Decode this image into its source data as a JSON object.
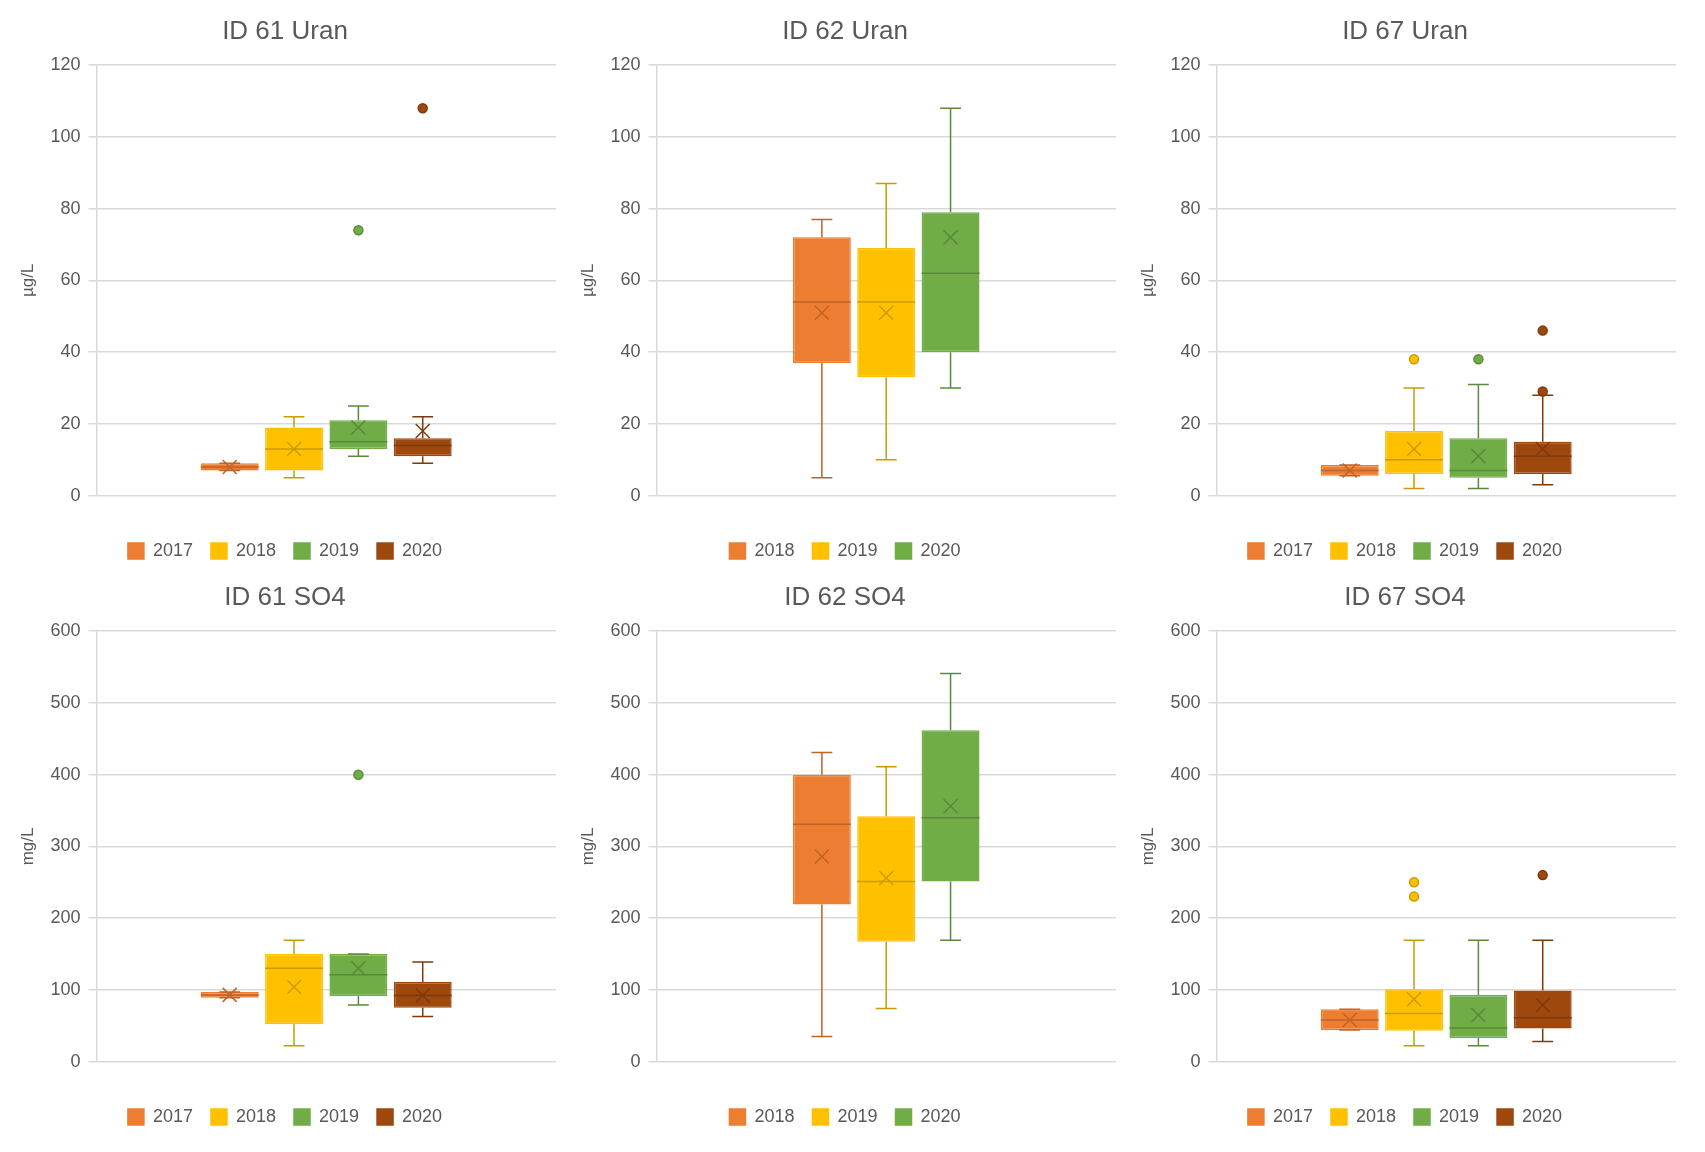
{
  "chart_data": [
    {
      "type": "box",
      "title": "ID 61 Uran",
      "ylabel": "µg/L",
      "categories": [
        null
      ],
      "ylim": [
        0,
        120
      ],
      "yticks": [
        0,
        20,
        40,
        60,
        80,
        100,
        120
      ],
      "grid": "y",
      "legend": "bottom",
      "series": [
        {
          "name": "2017",
          "color": "#ed7d31",
          "boxes": [
            {
              "low": 7,
              "q1": 7,
              "median": 8,
              "q3": 9,
              "high": 9,
              "mean": 8
            }
          ]
        },
        {
          "name": "2018",
          "color": "#ffc000",
          "boxes": [
            {
              "low": 5,
              "q1": 7,
              "median": 13,
              "q3": 19,
              "high": 22,
              "mean": 13
            }
          ]
        },
        {
          "name": "2019",
          "color": "#70ad47",
          "boxes": [
            {
              "low": 11,
              "q1": 13,
              "median": 15,
              "q3": 21,
              "high": 25,
              "mean": 19,
              "outliers": [
                74
              ]
            }
          ]
        },
        {
          "name": "2020",
          "color": "#9e480e",
          "boxes": [
            {
              "low": 9,
              "q1": 11,
              "median": 14,
              "q3": 16,
              "high": 22,
              "mean": 18,
              "outliers": [
                108
              ]
            }
          ]
        }
      ]
    },
    {
      "type": "box",
      "title": "ID 62 Uran",
      "ylabel": "µg/L",
      "categories": [
        null
      ],
      "ylim": [
        0,
        120
      ],
      "yticks": [
        0,
        20,
        40,
        60,
        80,
        100,
        120
      ],
      "grid": "y",
      "legend": "bottom",
      "series": [
        {
          "name": "2018",
          "color": "#ed7d31",
          "boxes": [
            {
              "low": 5,
              "q1": 37,
              "median": 54,
              "q3": 72,
              "high": 77,
              "mean": 51
            }
          ]
        },
        {
          "name": "2019",
          "color": "#ffc000",
          "boxes": [
            {
              "low": 10,
              "q1": 33,
              "median": 54,
              "q3": 69,
              "high": 87,
              "mean": 51
            }
          ]
        },
        {
          "name": "2020",
          "color": "#70ad47",
          "boxes": [
            {
              "low": 30,
              "q1": 40,
              "median": 62,
              "q3": 79,
              "high": 108,
              "mean": 72
            }
          ]
        }
      ]
    },
    {
      "type": "box",
      "title": "ID 67 Uran",
      "ylabel": "µg/L",
      "categories": [
        null
      ],
      "ylim": [
        0,
        120
      ],
      "yticks": [
        0,
        20,
        40,
        60,
        80,
        100,
        120
      ],
      "grid": "y",
      "legend": "bottom",
      "series": [
        {
          "name": "2017",
          "color": "#ed7d31",
          "boxes": [
            {
              "low": 5.5,
              "q1": 5.5,
              "median": 7,
              "q3": 8.5,
              "high": 8.5,
              "mean": 7
            }
          ]
        },
        {
          "name": "2018",
          "color": "#ffc000",
          "boxes": [
            {
              "low": 2,
              "q1": 6,
              "median": 10,
              "q3": 18,
              "high": 30,
              "mean": 13,
              "outliers": [
                38
              ]
            }
          ]
        },
        {
          "name": "2019",
          "color": "#70ad47",
          "boxes": [
            {
              "low": 2,
              "q1": 5,
              "median": 7,
              "q3": 16,
              "high": 31,
              "mean": 11,
              "outliers": [
                38
              ]
            }
          ]
        },
        {
          "name": "2020",
          "color": "#9e480e",
          "boxes": [
            {
              "low": 3,
              "q1": 6,
              "median": 11,
              "q3": 15,
              "high": 28,
              "mean": 13,
              "outliers": [
                29,
                46
              ]
            }
          ]
        }
      ]
    },
    {
      "type": "box",
      "title": "ID 61 SO4",
      "ylabel": "mg/L",
      "categories": [
        null
      ],
      "ylim": [
        0,
        600
      ],
      "yticks": [
        0,
        100,
        200,
        300,
        400,
        500,
        600
      ],
      "grid": "y",
      "legend": "bottom",
      "series": [
        {
          "name": "2017",
          "color": "#ed7d31",
          "boxes": [
            {
              "low": 89,
              "q1": 89,
              "median": 93,
              "q3": 97,
              "high": 97,
              "mean": 93
            }
          ]
        },
        {
          "name": "2018",
          "color": "#ffc000",
          "boxes": [
            {
              "low": 22,
              "q1": 52,
              "median": 130,
              "q3": 150,
              "high": 169,
              "mean": 104
            }
          ]
        },
        {
          "name": "2019",
          "color": "#70ad47",
          "boxes": [
            {
              "low": 79,
              "q1": 91,
              "median": 121,
              "q3": 150,
              "high": 150,
              "mean": 130,
              "outliers": [
                400
              ]
            }
          ]
        },
        {
          "name": "2020",
          "color": "#9e480e",
          "boxes": [
            {
              "low": 63,
              "q1": 75,
              "median": 92,
              "q3": 111,
              "high": 139,
              "mean": 92
            }
          ]
        }
      ]
    },
    {
      "type": "box",
      "title": "ID 62 SO4",
      "ylabel": "mg/L",
      "categories": [
        null
      ],
      "ylim": [
        0,
        600
      ],
      "yticks": [
        0,
        100,
        200,
        300,
        400,
        500,
        600
      ],
      "grid": "y",
      "legend": "bottom",
      "series": [
        {
          "name": "2018",
          "color": "#ed7d31",
          "boxes": [
            {
              "low": 35,
              "q1": 219,
              "median": 331,
              "q3": 400,
              "high": 431,
              "mean": 286
            }
          ]
        },
        {
          "name": "2019",
          "color": "#ffc000",
          "boxes": [
            {
              "low": 74,
              "q1": 167,
              "median": 251,
              "q3": 342,
              "high": 411,
              "mean": 256
            }
          ]
        },
        {
          "name": "2020",
          "color": "#70ad47",
          "boxes": [
            {
              "low": 169,
              "q1": 251,
              "median": 340,
              "q3": 462,
              "high": 541,
              "mean": 356
            }
          ]
        }
      ]
    },
    {
      "type": "box",
      "title": "ID 67 SO4",
      "ylabel": "mg/L",
      "categories": [
        null
      ],
      "ylim": [
        0,
        600
      ],
      "yticks": [
        0,
        100,
        200,
        300,
        400,
        500,
        600
      ],
      "grid": "y",
      "legend": "bottom",
      "series": [
        {
          "name": "2017",
          "color": "#ed7d31",
          "boxes": [
            {
              "low": 44,
              "q1": 44,
              "median": 58,
              "q3": 73,
              "high": 73,
              "mean": 58
            }
          ]
        },
        {
          "name": "2018",
          "color": "#ffc000",
          "boxes": [
            {
              "low": 22,
              "q1": 43,
              "median": 67,
              "q3": 101,
              "high": 169,
              "mean": 87,
              "outliers": [
                230,
                250
              ]
            }
          ]
        },
        {
          "name": "2019",
          "color": "#70ad47",
          "boxes": [
            {
              "low": 22,
              "q1": 33,
              "median": 47,
              "q3": 93,
              "high": 169,
              "mean": 65
            }
          ]
        },
        {
          "name": "2020",
          "color": "#9e480e",
          "boxes": [
            {
              "low": 28,
              "q1": 46,
              "median": 61,
              "q3": 99,
              "high": 169,
              "mean": 79,
              "outliers": [
                260
              ]
            }
          ]
        }
      ]
    }
  ]
}
